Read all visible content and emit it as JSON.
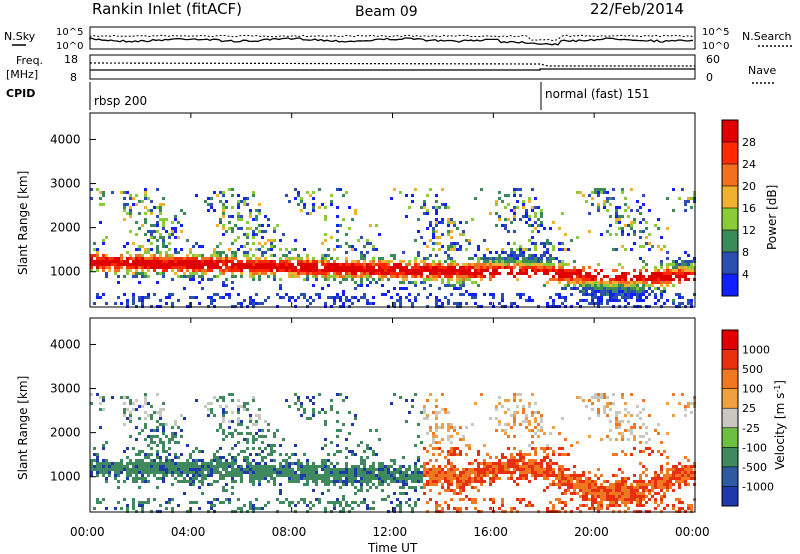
{
  "header": {
    "title": "Rankin Inlet (fitACF)",
    "beam": "Beam 09",
    "date": "22/Feb/2014"
  },
  "noise_panel": {
    "left_label": "N.Sky",
    "right_label": "N.Search",
    "ticks_left": [
      "10^5",
      "10^0"
    ],
    "ticks_right": [
      "10^5",
      "10^0"
    ]
  },
  "freq_panel": {
    "left_label_1": "Freq.",
    "left_label_2": "[MHz]",
    "right_label": "Nave",
    "ticks_left": [
      "18",
      "8"
    ],
    "ticks_right": [
      "60",
      "0"
    ]
  },
  "cpid": {
    "label": "CPID",
    "segments": [
      "rbsp 200",
      "normal (fast) 151"
    ]
  },
  "chart_data": [
    {
      "type": "heatmap",
      "name": "power",
      "ylabel": "Slant Range [km]",
      "yticks": [
        "1000",
        "2000",
        "3000",
        "4000"
      ],
      "ylim": [
        200,
        4600
      ],
      "colorbar_label": "Power [dB]",
      "colorbar_ticks": [
        "4",
        "8",
        "12",
        "16",
        "20",
        "24",
        "28"
      ],
      "colorbar_colors": [
        "#1020ff",
        "#2b4fb0",
        "#3a8a5a",
        "#8acb3a",
        "#f0b030",
        "#f07020",
        "#ff2a00",
        "#e00000"
      ]
    },
    {
      "type": "heatmap",
      "name": "velocity",
      "ylabel": "Slant Range [km]",
      "yticks": [
        "1000",
        "2000",
        "3000",
        "4000"
      ],
      "ylim": [
        200,
        4600
      ],
      "colorbar_label": "Velocity [m s",
      "colorbar_label_sup": "-1",
      "colorbar_label_end": "]",
      "colorbar_ticks": [
        "1000",
        "500",
        "100",
        "25",
        "-25",
        "-100",
        "-500",
        "-1000"
      ],
      "colorbar_colors": [
        "#1e3aa8",
        "#2e5aa0",
        "#3e8a5e",
        "#6cc040",
        "#c8c8c0",
        "#f0a040",
        "#f07820",
        "#e83010",
        "#e00000"
      ]
    }
  ],
  "x_axis": {
    "ticks": [
      "00:00",
      "04:00",
      "08:00",
      "12:00",
      "16:00",
      "20:00",
      "00:00"
    ],
    "label": "Time UT"
  }
}
